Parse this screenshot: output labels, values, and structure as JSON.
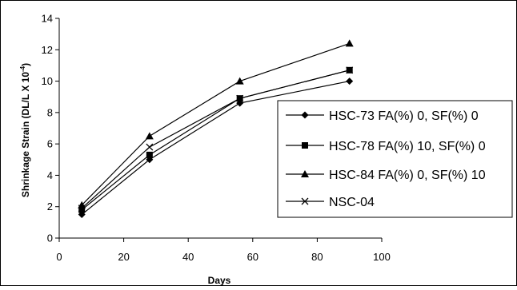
{
  "chart_data": {
    "type": "line",
    "xlabel": "Days",
    "ylabel_main": "Shrinkage Strain (DL/L X 10",
    "ylabel_sup": "-4",
    "ylabel_end": ")",
    "xlim": [
      0,
      100
    ],
    "ylim": [
      0,
      14
    ],
    "xticks": [
      0,
      20,
      40,
      60,
      80,
      100
    ],
    "yticks": [
      0,
      2,
      4,
      6,
      8,
      10,
      12,
      14
    ],
    "grid": false,
    "legend_position": "right",
    "x": [
      7,
      28,
      56,
      90
    ],
    "series": [
      {
        "name": "HSC-73 FA(%) 0, SF(%) 0",
        "marker": "diamond",
        "values": [
          1.5,
          5.0,
          8.6,
          10.0
        ]
      },
      {
        "name": "HSC-78 FA(%) 10, SF(%) 0",
        "marker": "square",
        "values": [
          1.8,
          5.3,
          8.9,
          10.7
        ]
      },
      {
        "name": "HSC-84 FA(%) 0, SF(%) 10",
        "marker": "triangle",
        "values": [
          2.1,
          6.5,
          10.0,
          12.4
        ]
      },
      {
        "name": "NSC-04",
        "marker": "x",
        "values": [
          1.9,
          5.8,
          8.9,
          10.7
        ]
      }
    ],
    "line_color": "#000000"
  }
}
